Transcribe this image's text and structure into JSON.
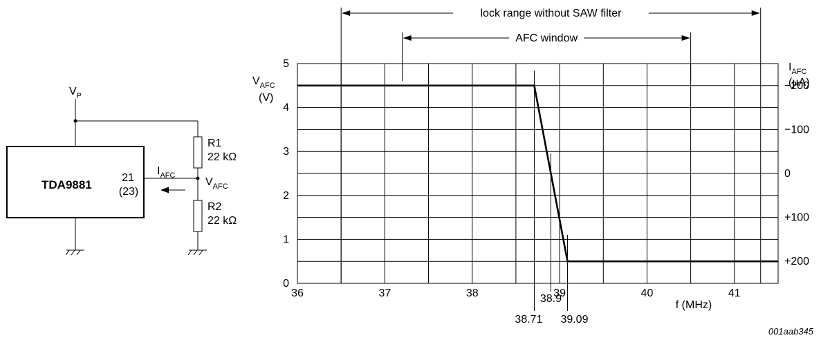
{
  "circuit": {
    "supply": {
      "main": "V",
      "sub": "P"
    },
    "chip": "TDA9881",
    "pin": "21",
    "pin_alt": "(23)",
    "current": {
      "main": "I",
      "sub": "AFC"
    },
    "node": {
      "main": "V",
      "sub": "AFC"
    },
    "r1": {
      "name": "R1",
      "value": "22 kΩ"
    },
    "r2": {
      "name": "R2",
      "value": "22 kΩ"
    }
  },
  "chart_data": {
    "type": "line",
    "xlim": [
      36,
      41.5
    ],
    "ylim": [
      0,
      5
    ],
    "x_ticks": [
      "36",
      "37",
      "38",
      "39",
      "40",
      "41"
    ],
    "y_ticks": [
      "0",
      "1",
      "2",
      "3",
      "4",
      "5"
    ],
    "xlabel": "f (MHz)",
    "ylabel": {
      "main": "V",
      "sub": "AFC",
      "unit": "(V)"
    },
    "y2label": {
      "main": "I",
      "sub": "AFC",
      "unit": "(µA)"
    },
    "y2_ticks": [
      {
        "v": 4.5,
        "label": "−200"
      },
      {
        "v": 3.5,
        "label": "−100"
      },
      {
        "v": 2.5,
        "label": "0"
      },
      {
        "v": 1.5,
        "label": "+100"
      },
      {
        "v": 0.5,
        "label": "+200"
      }
    ],
    "x": [
      36,
      38.71,
      39.09,
      41.5
    ],
    "y": [
      4.5,
      4.5,
      0.5,
      0.5
    ],
    "markers": [
      {
        "x": 38.71,
        "label": "38.71"
      },
      {
        "x": 38.9,
        "label": "38.9"
      },
      {
        "x": 39.09,
        "label": "39.09"
      }
    ],
    "ranges": [
      {
        "from": 36.5,
        "to": 41.3,
        "label": "lock range without SAW filter"
      },
      {
        "from": 37.2,
        "to": 40.5,
        "label": "AFC window"
      }
    ],
    "grid": true
  },
  "figure_code": "001aab345"
}
